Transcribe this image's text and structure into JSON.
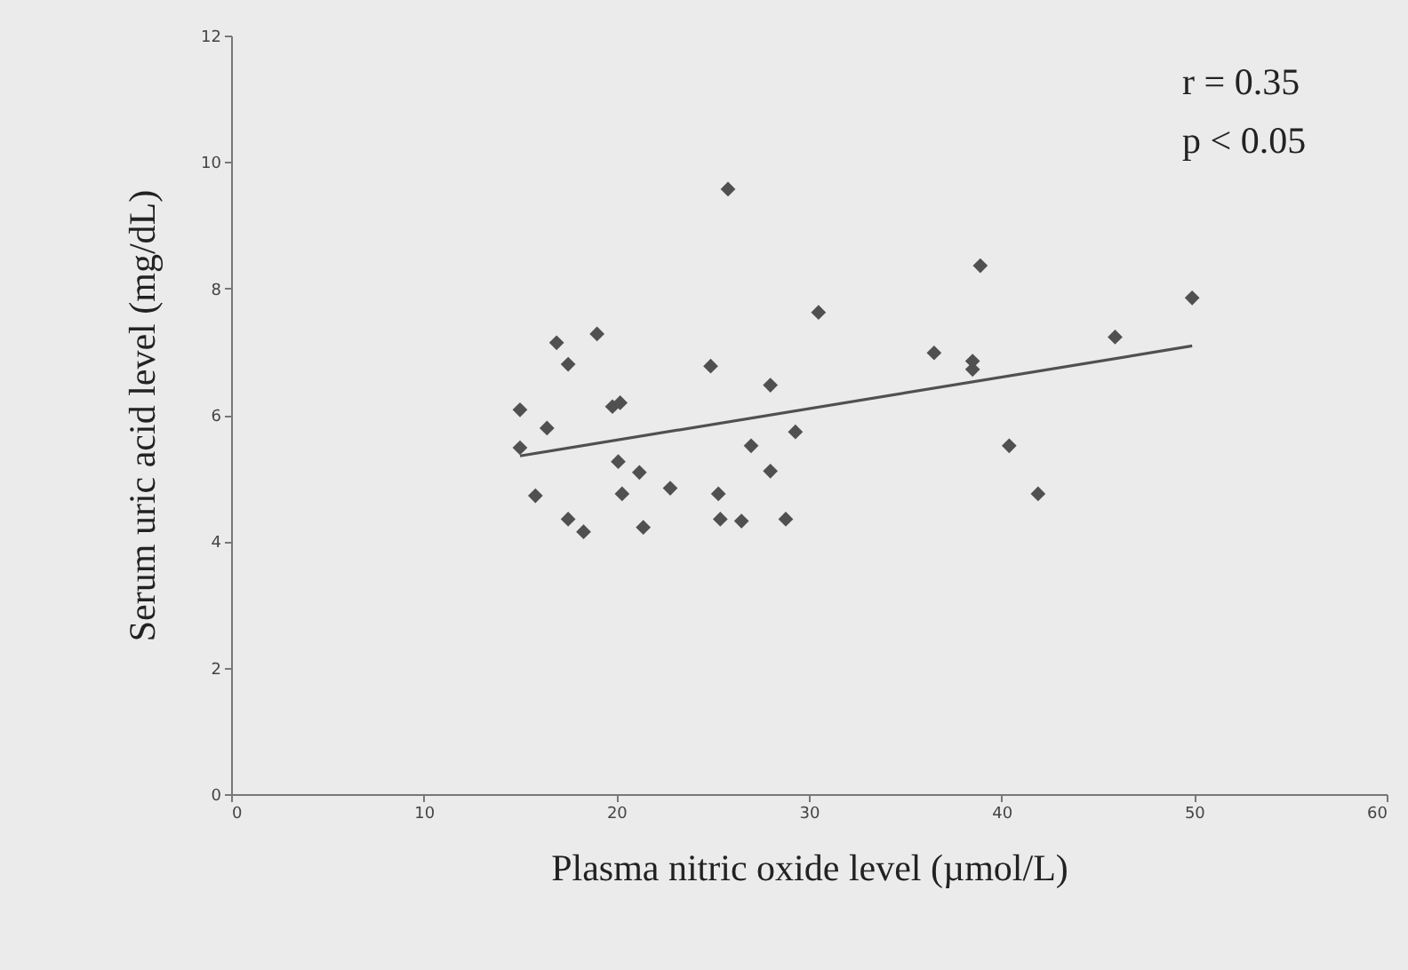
{
  "chart_data": {
    "type": "scatter",
    "xlabel": "Plasma nitric oxide level (µmol/L)",
    "ylabel": "Serum  uric acid level (mg/dL)",
    "xlim": [
      0,
      60
    ],
    "xticks": [
      0,
      10,
      20,
      30,
      40,
      50,
      60
    ],
    "ylim": [
      0,
      12
    ],
    "yticks": [
      0,
      2,
      4,
      6,
      8,
      10,
      12
    ],
    "grid": false,
    "annotations": [
      "r = 0.35",
      "p < 0.05"
    ],
    "series": [
      {
        "color": "#505050",
        "marker": "diamond",
        "x": [
          15.0,
          15.0,
          15.8,
          16.4,
          16.9,
          17.5,
          17.5,
          18.3,
          19.0,
          19.8,
          20.2,
          20.1,
          20.3,
          21.2,
          21.4,
          22.8,
          24.9,
          25.3,
          25.4,
          25.8,
          26.5,
          27.0,
          28.0,
          28.0,
          28.8,
          29.3,
          30.5,
          36.5,
          38.5,
          38.5,
          38.9,
          40.4,
          41.9,
          45.9,
          49.9
        ],
        "values": [
          6.08,
          5.48,
          4.72,
          5.79,
          7.14,
          6.8,
          4.35,
          4.15,
          7.28,
          6.13,
          6.19,
          5.26,
          4.75,
          5.09,
          4.22,
          4.84,
          6.77,
          4.75,
          4.35,
          9.57,
          4.32,
          5.51,
          6.47,
          5.11,
          4.35,
          5.73,
          7.62,
          6.98,
          6.72,
          6.85,
          8.36,
          5.51,
          4.75,
          7.23,
          7.85
        ]
      },
      {
        "type": "line",
        "color": "#505050",
        "line_style": "solid",
        "x": [
          15.0,
          49.9
        ],
        "values": [
          5.35,
          7.09
        ]
      }
    ]
  }
}
